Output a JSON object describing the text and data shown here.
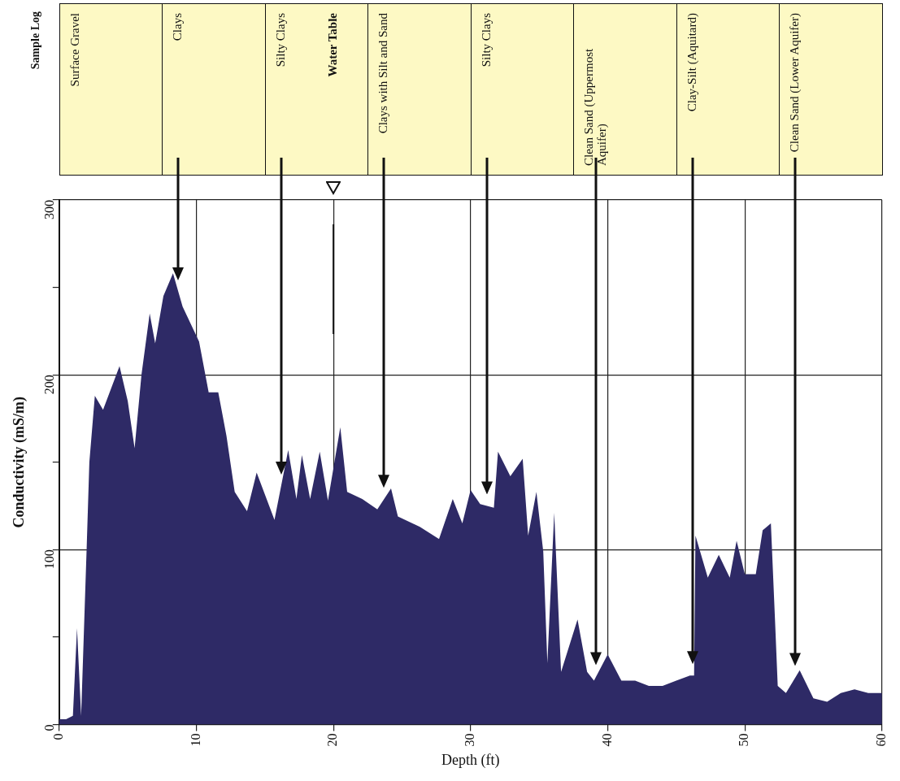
{
  "chart_data": {
    "type": "area",
    "xlabel": "Depth (ft)",
    "ylabel": "Conductivity (mS/m)",
    "x": [
      0,
      0.5,
      1.0,
      1.3,
      1.6,
      2.0,
      2.2,
      2.6,
      3.2,
      4.4,
      5.0,
      5.5,
      6.0,
      6.6,
      7.0,
      7.6,
      8.3,
      9.0,
      10.2,
      10.9,
      11.6,
      12.2,
      12.8,
      13.7,
      14.4,
      15.7,
      16.7,
      17.3,
      17.7,
      18.3,
      19.0,
      19.6,
      20.5,
      21.0,
      22.1,
      23.2,
      24.2,
      24.7,
      26.3,
      27.7,
      28.7,
      29.4,
      30.0,
      30.7,
      31.7,
      32.0,
      32.9,
      33.8,
      34.2,
      34.8,
      35.3,
      35.6,
      36.1,
      36.6,
      37.2,
      37.8,
      38.5,
      39.0,
      40.0,
      41.0,
      42.0,
      43.0,
      44.0,
      45.0,
      46.0,
      46.3,
      46.4,
      47.3,
      48.1,
      48.9,
      49.4,
      50.0,
      50.8,
      51.3,
      51.9,
      52.2,
      52.4,
      53.0,
      54.0,
      55.0,
      56.0,
      57.0,
      58.0,
      59.0,
      60.0
    ],
    "series": [
      {
        "color": "#2e2a66",
        "values": [
          3,
          3,
          5,
          55,
          5,
          100,
          150,
          188,
          180,
          205,
          185,
          158,
          200,
          235,
          218,
          245,
          258,
          239,
          219,
          190,
          190,
          165,
          133,
          122,
          144,
          117,
          157,
          129,
          154,
          129,
          156,
          128,
          170,
          133,
          129,
          123,
          135,
          119,
          113,
          106,
          129,
          115,
          134,
          126,
          124,
          156,
          142,
          152,
          108,
          133,
          99,
          35,
          121,
          30,
          45,
          60,
          30,
          25,
          40,
          25,
          25,
          22,
          22,
          25,
          28,
          28,
          108,
          84,
          97,
          84,
          105,
          86,
          86,
          111,
          115,
          60,
          22,
          18,
          31,
          15,
          13,
          18,
          20,
          18,
          18
        ]
      }
    ],
    "xlim": [
      0,
      60
    ],
    "xticks": [
      0,
      10,
      20,
      30,
      40,
      50,
      60
    ],
    "ylim": [
      0,
      300
    ],
    "yticks": [
      0,
      {
        "value": 50,
        "label": null
      },
      100,
      {
        "value": 150,
        "label": null
      },
      200,
      {
        "value": 250,
        "label": null
      },
      300
    ],
    "grid": true,
    "legend": false,
    "ref_lines": [
      {
        "axis": "x",
        "value": 20,
        "label": "Water Table"
      }
    ],
    "annotations": [
      "Sample Log",
      "Surface Gravel",
      "Clays",
      "Silty Clays",
      "Clays with Silt and Sand",
      "Silty Clays",
      "Clean Sand (Uppermost Aquifer)",
      "Clay-Silt (Aquitard)",
      "Clean Sand (Lower Aquifer)"
    ]
  }
}
